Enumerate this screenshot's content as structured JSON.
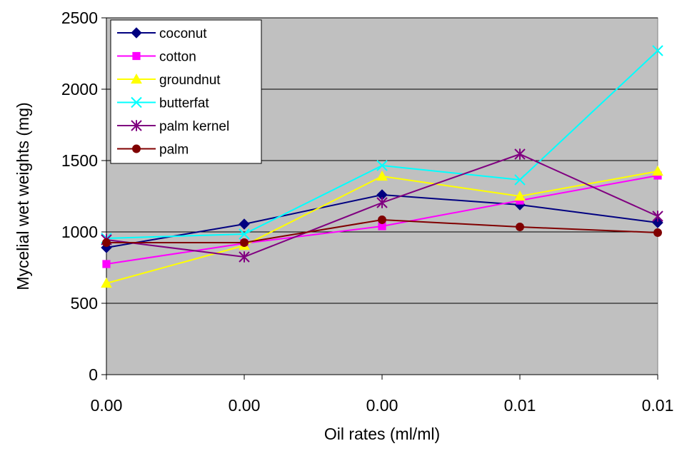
{
  "chart_data": {
    "type": "line",
    "xlabel": "Oil rates (ml/ml)",
    "ylabel": "Mycelial wet weights (mg)",
    "categories": [
      "0.00",
      "0.00",
      "0.00",
      "0.01",
      "0.01"
    ],
    "ylim": [
      0,
      2500
    ],
    "yticks": [
      0,
      500,
      1000,
      1500,
      2000,
      2500
    ],
    "grid": true,
    "legend_position": "top-left",
    "plot_background": "#c0c0c0",
    "series": [
      {
        "name": "coconut",
        "color": "#000080",
        "marker": "diamond",
        "values": [
          890,
          1055,
          1260,
          1190,
          1065
        ]
      },
      {
        "name": "cotton",
        "color": "#ff00ff",
        "marker": "square",
        "values": [
          775,
          920,
          1040,
          1220,
          1395
        ]
      },
      {
        "name": "groundnut",
        "color": "#ffff00",
        "marker": "triangle",
        "values": [
          640,
          905,
          1390,
          1250,
          1425
        ]
      },
      {
        "name": "butterfat",
        "color": "#00ffff",
        "marker": "x",
        "values": [
          955,
          985,
          1465,
          1365,
          2270
        ]
      },
      {
        "name": "palm kernel",
        "color": "#800080",
        "marker": "asterisk",
        "values": [
          945,
          825,
          1205,
          1545,
          1110
        ]
      },
      {
        "name": "palm",
        "color": "#800000",
        "marker": "circle",
        "values": [
          925,
          925,
          1085,
          1035,
          995
        ]
      }
    ]
  }
}
